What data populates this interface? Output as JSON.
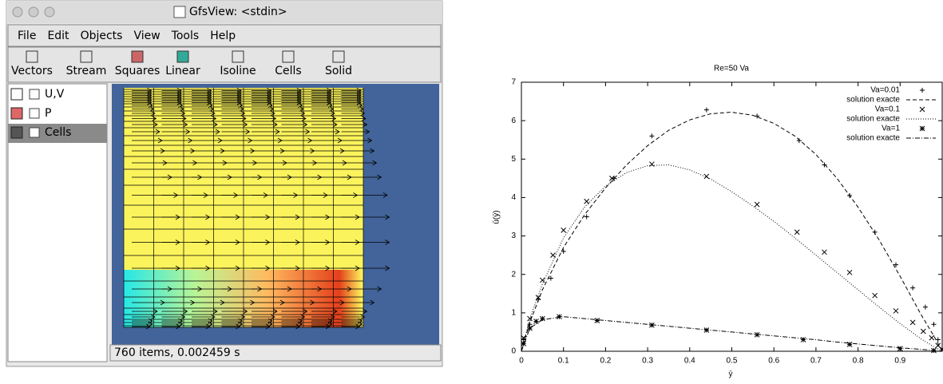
{
  "window": {
    "title": "GfsView: <stdin>",
    "menu": [
      "File",
      "Edit",
      "Objects",
      "View",
      "Tools",
      "Help"
    ],
    "toolbar": [
      "Vectors",
      "Stream",
      "Squares",
      "Linear",
      "Isoline",
      "Cells",
      "Solid"
    ],
    "objects": [
      "U,V",
      "P",
      "Cells"
    ],
    "status": "760 items, 0.002459 s"
  },
  "chart_data": {
    "type": "line",
    "title": "Re=50 Va",
    "x_label": "ȳ",
    "y_label": "ū(ȳ)",
    "xlim": [
      0,
      1
    ],
    "ylim": [
      0,
      7
    ],
    "xticks": [
      0,
      0.1,
      0.2,
      0.3,
      0.4,
      0.5,
      0.6,
      0.7,
      0.8,
      0.9
    ],
    "yticks": [
      0,
      1,
      2,
      3,
      4,
      5,
      6,
      7
    ],
    "legend": "top-right",
    "series": [
      {
        "name": "Va=0.01",
        "color": "#000000",
        "marker": "plus",
        "x": [
          0.005,
          0.02,
          0.04,
          0.07,
          0.1,
          0.155,
          0.22,
          0.31,
          0.44,
          0.56,
          0.66,
          0.72,
          0.78,
          0.84,
          0.89,
          0.93,
          0.96,
          0.98,
          0.99
        ],
        "values": [
          0.3,
          0.7,
          1.35,
          1.9,
          2.6,
          3.5,
          4.5,
          5.6,
          6.28,
          6.12,
          5.48,
          4.85,
          4.05,
          3.1,
          2.25,
          1.65,
          1.15,
          0.7,
          0.3
        ]
      },
      {
        "name": "solution exacte",
        "color": "#000000",
        "dash": "5,3",
        "x": [
          0,
          0.02,
          0.05,
          0.1,
          0.15,
          0.2,
          0.25,
          0.3,
          0.35,
          0.4,
          0.45,
          0.5,
          0.55,
          0.6,
          0.65,
          0.7,
          0.75,
          0.8,
          0.85,
          0.9,
          0.95,
          0.98,
          1
        ],
        "values": [
          0,
          0.75,
          1.6,
          2.7,
          3.55,
          4.25,
          4.85,
          5.35,
          5.75,
          6.02,
          6.18,
          6.22,
          6.14,
          5.93,
          5.6,
          5.12,
          4.5,
          3.75,
          2.9,
          1.95,
          0.95,
          0.4,
          0
        ]
      },
      {
        "name": "Va=0.1",
        "color": "#000000",
        "marker": "cross",
        "x": [
          0.005,
          0.02,
          0.04,
          0.05,
          0.075,
          0.1,
          0.155,
          0.215,
          0.31,
          0.44,
          0.56,
          0.655,
          0.72,
          0.78,
          0.84,
          0.89,
          0.93,
          0.955,
          0.975,
          0.99,
          1
        ],
        "values": [
          0.35,
          0.85,
          1.4,
          1.85,
          2.5,
          3.15,
          3.9,
          4.5,
          4.87,
          4.55,
          3.82,
          3.1,
          2.58,
          2.05,
          1.45,
          1.05,
          0.75,
          0.52,
          0.35,
          0.15,
          0.05
        ]
      },
      {
        "name": "solution exacte",
        "color": "#000000",
        "dash": "1,2",
        "x": [
          0,
          0.02,
          0.05,
          0.1,
          0.15,
          0.2,
          0.25,
          0.3,
          0.35,
          0.4,
          0.45,
          0.5,
          0.55,
          0.6,
          0.65,
          0.7,
          0.75,
          0.8,
          0.85,
          0.9,
          0.95,
          0.98,
          1
        ],
        "values": [
          0,
          0.85,
          1.75,
          2.95,
          3.75,
          4.3,
          4.65,
          4.83,
          4.85,
          4.72,
          4.48,
          4.15,
          3.78,
          3.38,
          2.95,
          2.5,
          2.05,
          1.6,
          1.15,
          0.72,
          0.32,
          0.12,
          0
        ]
      },
      {
        "name": "Va=1",
        "color": "#000000",
        "marker": "star",
        "x": [
          0.005,
          0.02,
          0.035,
          0.05,
          0.09,
          0.18,
          0.31,
          0.44,
          0.56,
          0.67,
          0.78,
          0.9,
          0.98
        ],
        "values": [
          0.2,
          0.6,
          0.78,
          0.85,
          0.9,
          0.8,
          0.68,
          0.55,
          0.43,
          0.3,
          0.18,
          0.07,
          0.02
        ]
      },
      {
        "name": "solution exacte",
        "color": "#000000",
        "dash": "6,2,1,2",
        "x": [
          0,
          0.02,
          0.05,
          0.1,
          0.15,
          0.2,
          0.25,
          0.3,
          0.35,
          0.4,
          0.45,
          0.5,
          0.55,
          0.6,
          0.65,
          0.7,
          0.75,
          0.8,
          0.85,
          0.9,
          0.95,
          0.98,
          1
        ],
        "values": [
          0,
          0.6,
          0.82,
          0.9,
          0.85,
          0.8,
          0.75,
          0.7,
          0.65,
          0.6,
          0.55,
          0.5,
          0.45,
          0.4,
          0.35,
          0.3,
          0.24,
          0.19,
          0.14,
          0.09,
          0.05,
          0.02,
          0
        ]
      }
    ]
  }
}
